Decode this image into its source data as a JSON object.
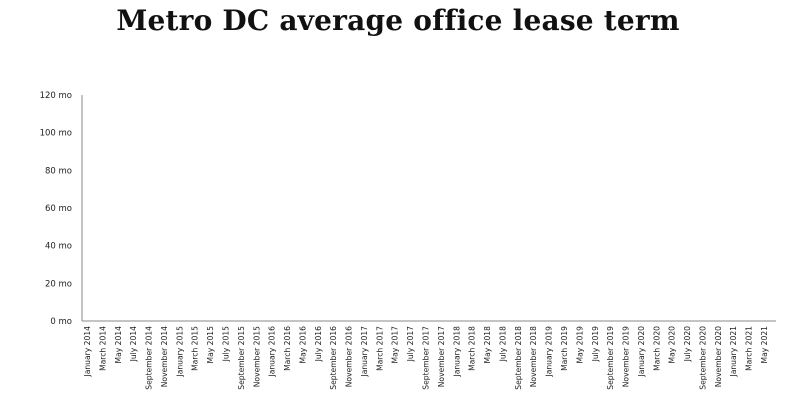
{
  "chart_data": {
    "type": "line",
    "title": "Metro DC average office lease term",
    "xlabel": "",
    "ylabel": "",
    "ylim": [
      0,
      120
    ],
    "y_ticks": [
      "0 mo",
      "20 mo",
      "40 mo",
      "60 mo",
      "80 mo",
      "100 mo",
      "120 mo"
    ],
    "categories": [
      "January 2014",
      "March 2014",
      "May 2014",
      "July 2014",
      "September 2014",
      "November 2014",
      "January 2015",
      "March 2015",
      "May 2015",
      "July 2015",
      "September 2015",
      "November 2015",
      "January 2016",
      "March 2016",
      "May 2016",
      "July 2016",
      "September 2016",
      "November 2016",
      "January 2017",
      "March 2017",
      "May 2017",
      "July 2017",
      "September 2017",
      "November 2017",
      "January 2018",
      "March 2018",
      "May 2018",
      "July 2018",
      "September 2018",
      "November 2018",
      "January 2019",
      "March 2019",
      "May 2019",
      "July 2019",
      "September 2019",
      "November 2019",
      "January 2020",
      "March 2020",
      "May 2020",
      "July 2020",
      "September 2020",
      "November 2020",
      "January 2021",
      "March 2021",
      "May 2021"
    ],
    "series": [],
    "grid": false,
    "colors": {
      "axis": "#888888",
      "text": "#222222",
      "title": "#111111"
    }
  }
}
